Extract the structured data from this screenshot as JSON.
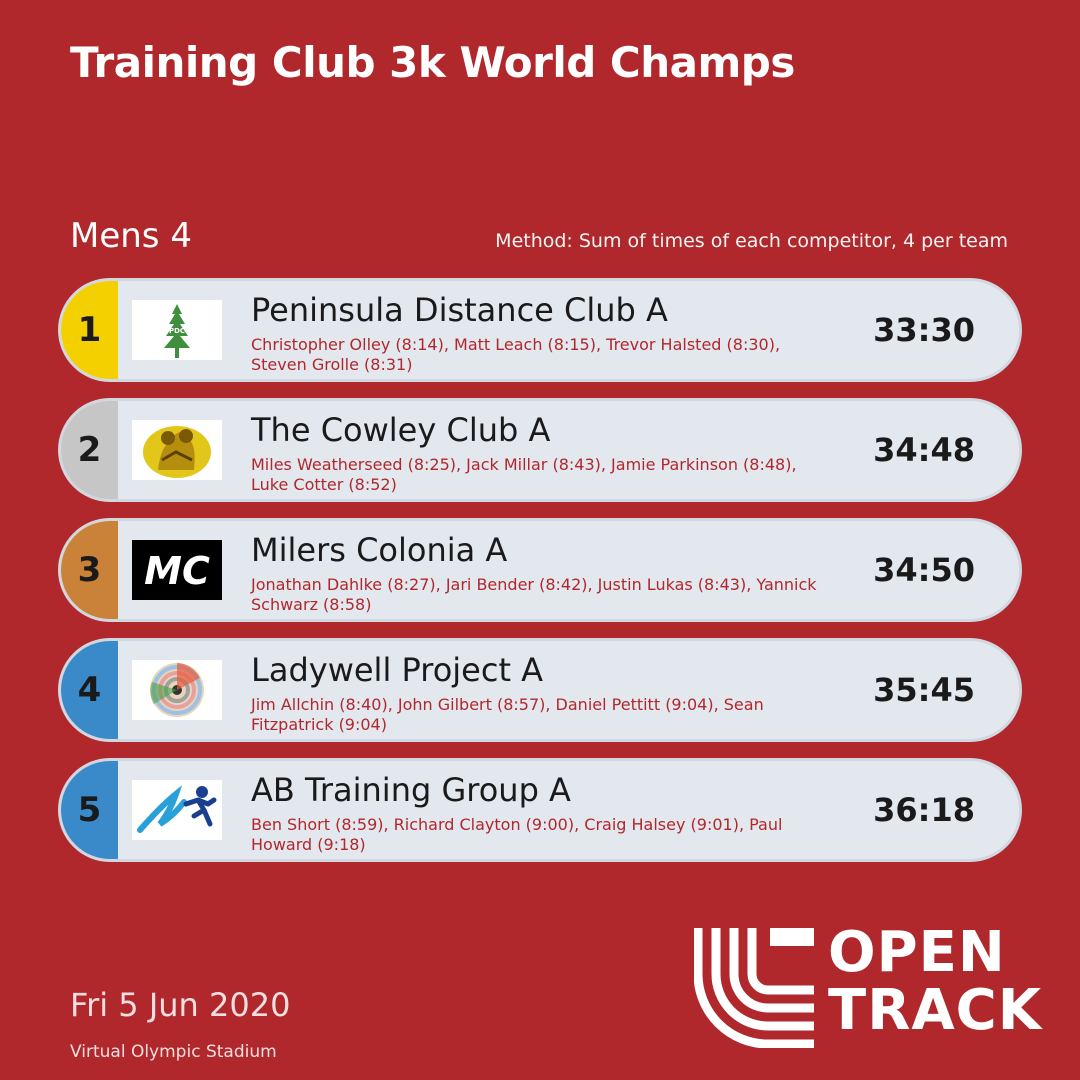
{
  "header": {
    "title": "Training Club 3k World Champs",
    "category": "Mens 4",
    "method": "Method: Sum of times of each competitor, 4 per team"
  },
  "results": [
    {
      "rank": "1",
      "team": "Peninsula Distance Club A",
      "athletes": "Christopher Olley (8:14), Matt Leach (8:15), Trevor Halsted (8:30), Steven Grolle (8:31)",
      "time": "33:30",
      "rank_color": "#f5d000",
      "logo_text": "PDC",
      "logo_icon": "pine-tree-icon"
    },
    {
      "rank": "2",
      "team": "The Cowley Club A",
      "athletes": "Miles Weatherseed (8:25), Jack Millar (8:43), Jamie Parkinson (8:48), Luke Cotter (8:52)",
      "time": "34:48",
      "rank_color": "#c6c6c6",
      "logo_icon": "yellow-figure-icon"
    },
    {
      "rank": "3",
      "team": "Milers Colonia A",
      "athletes": "Jonathan Dahlke (8:27), Jari Bender (8:42), Justin Lukas (8:43), Yannick Schwarz (8:58)",
      "time": "34:50",
      "rank_color": "#c98237",
      "logo_text": "MC",
      "logo_icon": "mc-wordmark-icon"
    },
    {
      "rank": "4",
      "team": "Ladywell Project A",
      "athletes": "Jim Allchin (8:40), John Gilbert (8:57), Daniel Pettitt (9:04), Sean Fitzpatrick (9:04)",
      "time": "35:45",
      "rank_color": "#3a8ac9",
      "logo_icon": "color-disc-icon"
    },
    {
      "rank": "5",
      "team": "AB Training Group A",
      "athletes": "Ben Short (8:59), Richard Clayton (9:00), Craig Halsey (9:01), Paul Howard (9:18)",
      "time": "36:18",
      "rank_color": "#3a8ac9",
      "logo_icon": "runner-icon"
    }
  ],
  "footer": {
    "date": "Fri 5 Jun 2020",
    "venue": "Virtual Olympic Stadium",
    "brand_line1": "OPEN",
    "brand_line2": "TRACK"
  },
  "colors": {
    "background": "#b0282c",
    "row_bg": "#e3e7ee",
    "athletes_text": "#b0282c"
  }
}
